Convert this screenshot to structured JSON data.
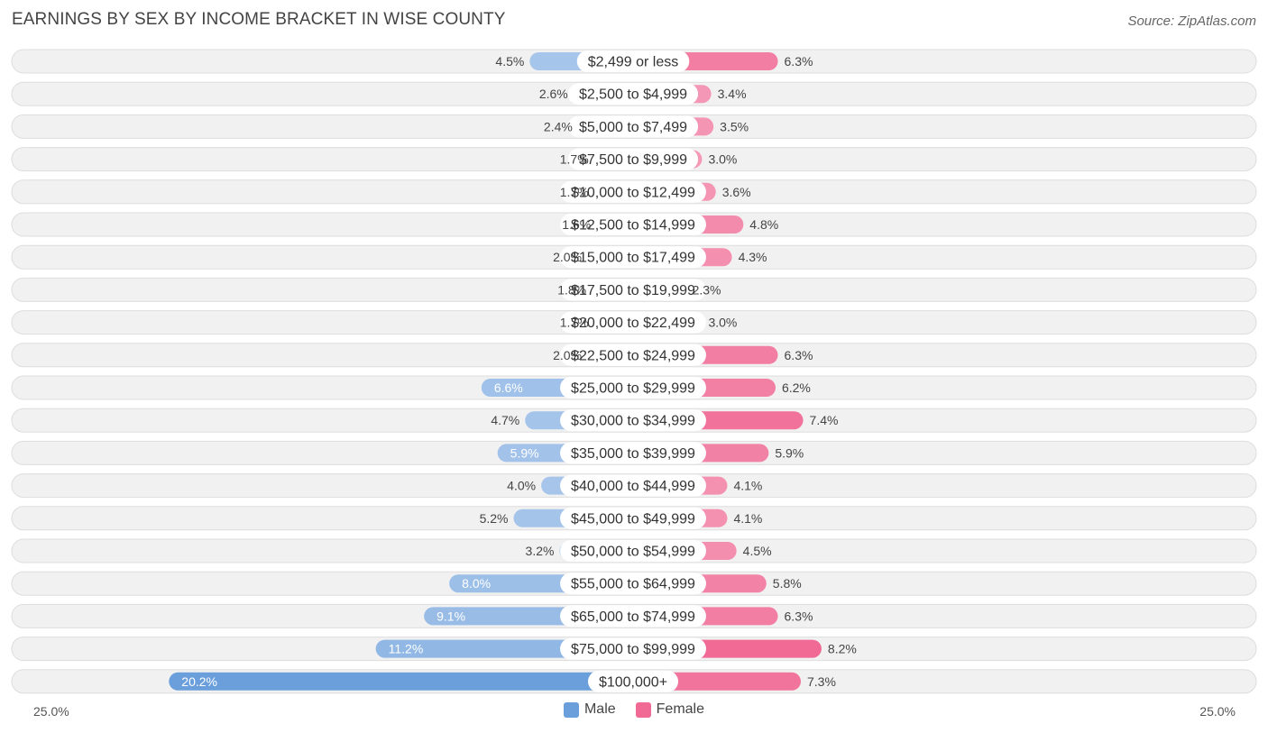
{
  "title": "EARNINGS BY SEX BY INCOME BRACKET IN WISE COUNTY",
  "source": "Source: ZipAtlas.com",
  "axis": {
    "left_label": "25.0%",
    "right_label": "25.0%"
  },
  "legend": {
    "male_label": "Male",
    "female_label": "Female"
  },
  "colors": {
    "male_light": "#adc9ec",
    "male_dark": "#6a9fdc",
    "female_light": "#f6a6c0",
    "female_dark": "#f06a95",
    "row_bg": "#f1f1f1",
    "row_border": "#dddddd"
  },
  "chart_data": {
    "type": "bar",
    "orientation": "horizontal-diverging",
    "title": "EARNINGS BY SEX BY INCOME BRACKET IN WISE COUNTY",
    "xlim": [
      -25,
      25
    ],
    "categories": [
      "$2,499 or less",
      "$2,500 to $4,999",
      "$5,000 to $7,499",
      "$7,500 to $9,999",
      "$10,000 to $12,499",
      "$12,500 to $14,999",
      "$15,000 to $17,499",
      "$17,500 to $19,999",
      "$20,000 to $22,499",
      "$22,500 to $24,999",
      "$25,000 to $29,999",
      "$30,000 to $34,999",
      "$35,000 to $39,999",
      "$40,000 to $44,999",
      "$45,000 to $49,999",
      "$50,000 to $54,999",
      "$55,000 to $64,999",
      "$65,000 to $74,999",
      "$75,000 to $99,999",
      "$100,000+"
    ],
    "series": [
      {
        "name": "Male",
        "values": [
          4.5,
          2.6,
          2.4,
          1.7,
          1.7,
          1.6,
          2.0,
          1.8,
          1.7,
          2.0,
          6.6,
          4.7,
          5.9,
          4.0,
          5.2,
          3.2,
          8.0,
          9.1,
          11.2,
          20.2
        ],
        "labels": [
          "4.5%",
          "2.6%",
          "2.4%",
          "1.7%",
          "1.7%",
          "1.6%",
          "2.0%",
          "1.8%",
          "1.7%",
          "2.0%",
          "6.6%",
          "4.7%",
          "5.9%",
          "4.0%",
          "5.2%",
          "3.2%",
          "8.0%",
          "9.1%",
          "11.2%",
          "20.2%"
        ]
      },
      {
        "name": "Female",
        "values": [
          6.3,
          3.4,
          3.5,
          3.0,
          3.6,
          4.8,
          4.3,
          2.3,
          3.0,
          6.3,
          6.2,
          7.4,
          5.9,
          4.1,
          4.1,
          4.5,
          5.8,
          6.3,
          8.2,
          7.3
        ],
        "labels": [
          "6.3%",
          "3.4%",
          "3.5%",
          "3.0%",
          "3.6%",
          "4.8%",
          "4.3%",
          "2.3%",
          "3.0%",
          "6.3%",
          "6.2%",
          "7.4%",
          "5.9%",
          "4.1%",
          "4.1%",
          "4.5%",
          "5.8%",
          "6.3%",
          "8.2%",
          "7.3%"
        ]
      }
    ]
  }
}
